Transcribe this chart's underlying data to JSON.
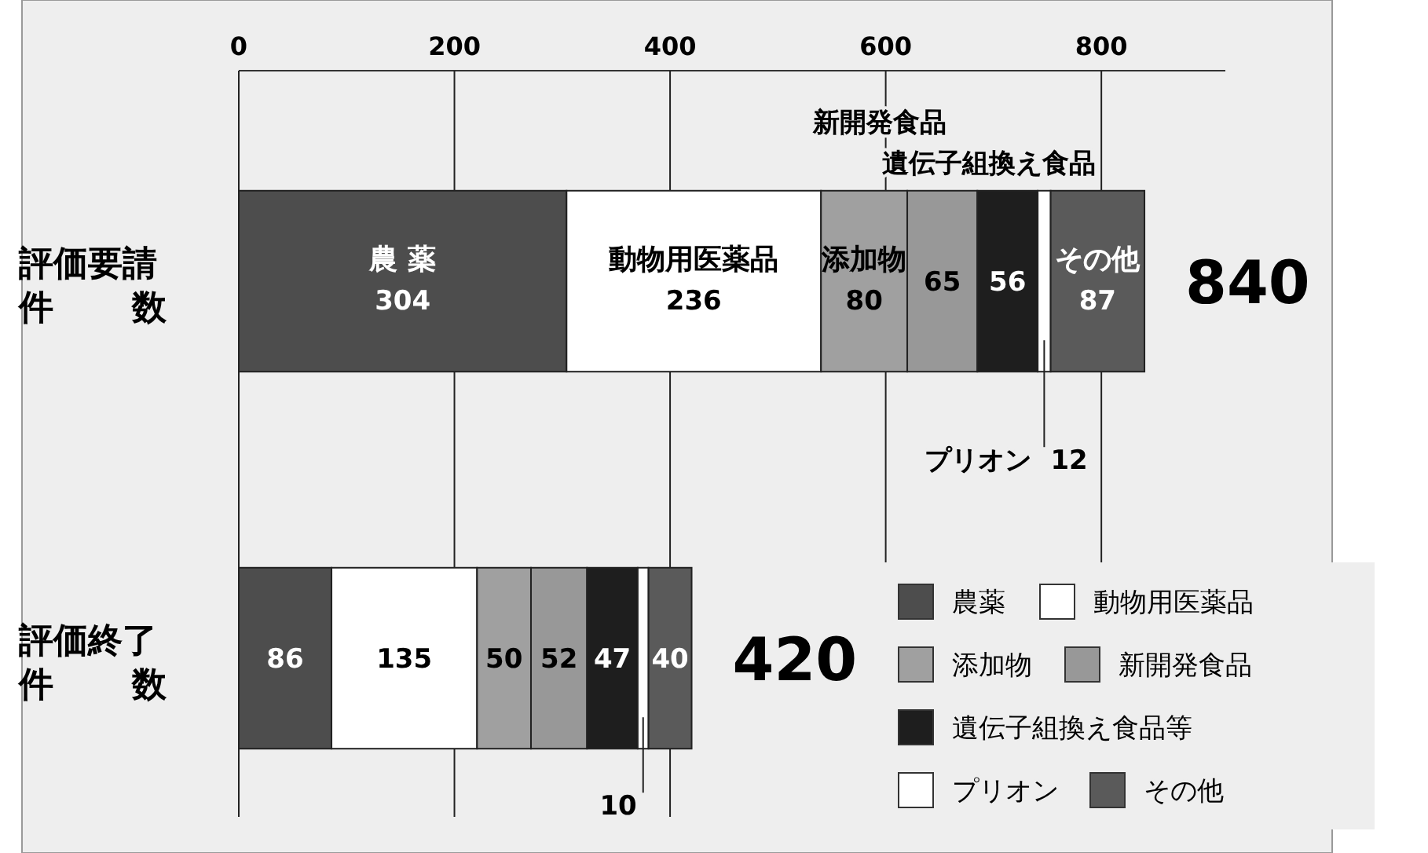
{
  "chart_data": {
    "type": "bar",
    "orientation": "horizontal",
    "stacked": true,
    "categories": [
      "評価要請件数",
      "評価終了件数"
    ],
    "series": [
      {
        "name": "農薬",
        "color": "#4d4d4d",
        "values": [
          304,
          86
        ]
      },
      {
        "name": "動物用医薬品",
        "color": "#ffffff",
        "values": [
          236,
          135
        ]
      },
      {
        "name": "添加物",
        "color": "#a0a0a0",
        "values": [
          80,
          50
        ]
      },
      {
        "name": "新開発食品",
        "color": "#989898",
        "values": [
          65,
          52
        ]
      },
      {
        "name": "遺伝子組換え食品等",
        "color": "#1e1e1e",
        "values": [
          56,
          47
        ]
      },
      {
        "name": "プリオン",
        "color": "#ffffff",
        "values": [
          12,
          10
        ]
      },
      {
        "name": "その他",
        "color": "#5a5a5a",
        "values": [
          87,
          40
        ]
      }
    ],
    "xlim": [
      0,
      915
    ],
    "xticks": [
      0,
      200,
      400,
      600,
      800
    ],
    "grid": "x",
    "data_labels": true,
    "totals": [
      "840",
      "420"
    ],
    "legend": "bottom right",
    "annotations": [
      "農 薬",
      "動物用医薬品",
      "添加物",
      "新開発食品",
      "遺伝子組換え食品",
      "プリオン",
      "その他"
    ]
  }
}
